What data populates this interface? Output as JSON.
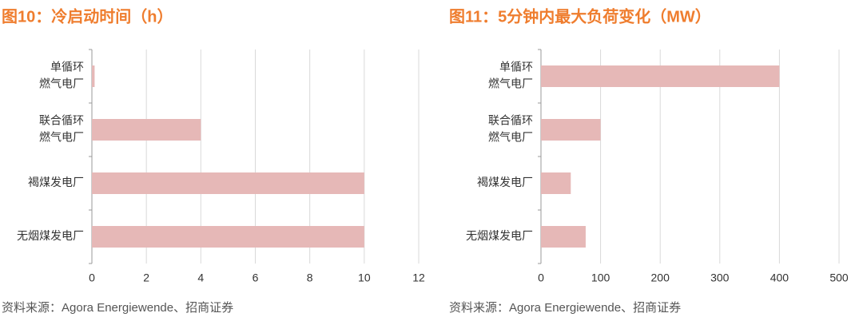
{
  "chart_data": [
    {
      "type": "barh",
      "title": "图10：冷启动时间（h）",
      "categories": [
        [
          "单循环",
          "燃气电厂"
        ],
        [
          "联合循环",
          "燃气电厂"
        ],
        [
          "褐煤发电厂"
        ],
        [
          "无烟煤发电厂"
        ]
      ],
      "values": [
        0.1,
        4,
        10,
        10
      ],
      "color": "#e6b8b7",
      "xlim": [
        0,
        12
      ],
      "xticks": [
        0,
        2,
        4,
        6,
        8,
        10,
        12
      ],
      "grid": true,
      "source": "资料来源：Agora Energiewende、招商证券"
    },
    {
      "type": "barh",
      "title": "图11：5分钟内最大负荷变化（MW）",
      "categories": [
        [
          "单循环",
          "燃气电厂"
        ],
        [
          "联合循环",
          "燃气电厂"
        ],
        [
          "褐煤发电厂"
        ],
        [
          "无烟煤发电厂"
        ]
      ],
      "values": [
        400,
        100,
        50,
        75
      ],
      "color": "#e6b8b7",
      "xlim": [
        0,
        500
      ],
      "xticks": [
        0,
        100,
        200,
        300,
        400,
        500
      ],
      "grid": true,
      "source": "资料来源：Agora Energiewende、招商证券"
    }
  ]
}
